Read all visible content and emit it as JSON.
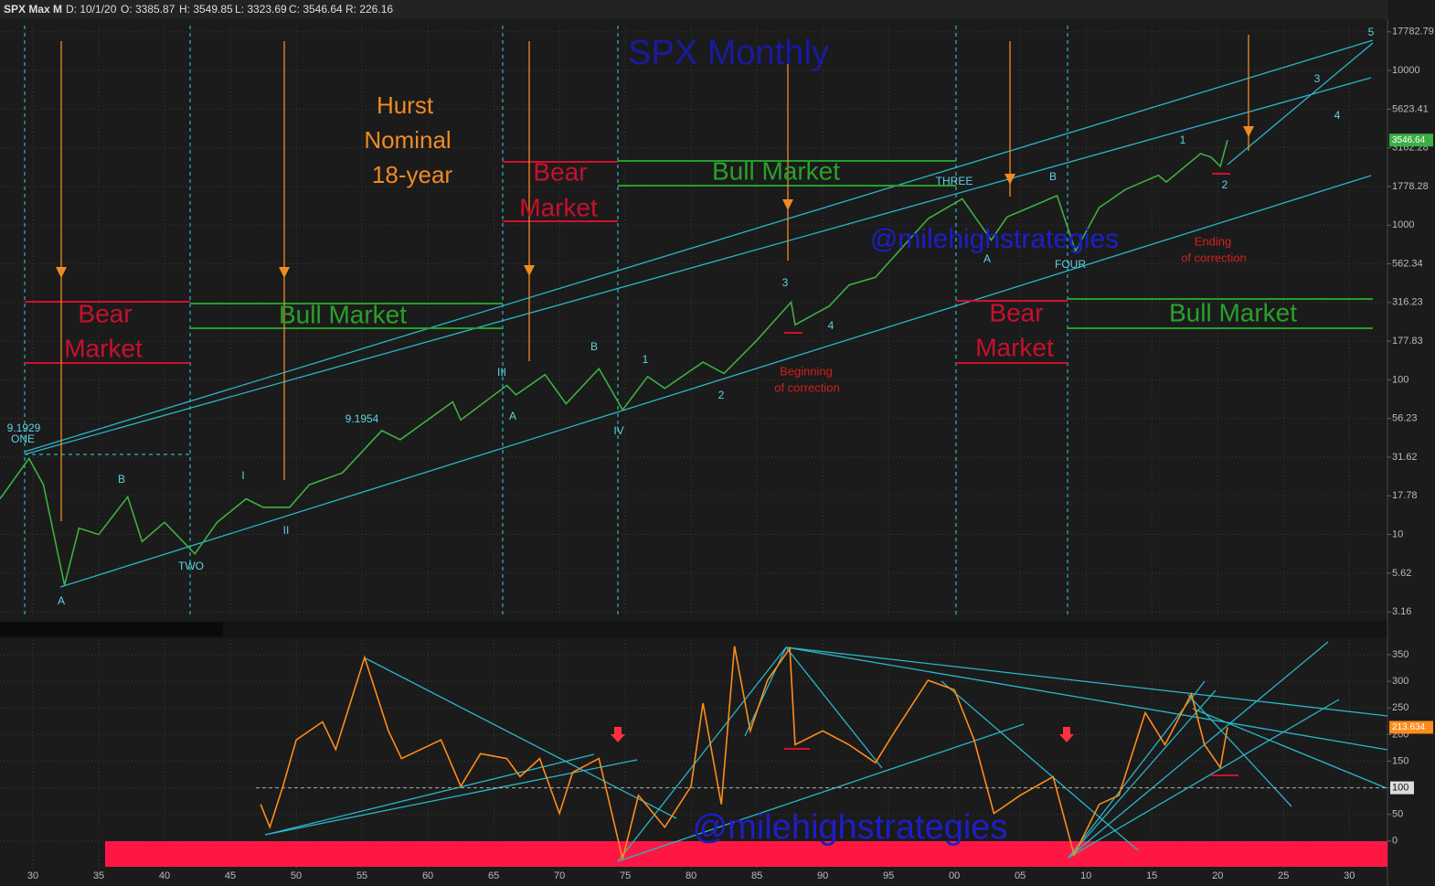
{
  "header": {
    "symbol": "SPX Max M",
    "date": "D: 10/1/20",
    "open": "O: 3385.87",
    "high": "H: 3549.85",
    "low": "L: 3323.69",
    "close": "C: 3546.64",
    "range": "R: 226.16"
  },
  "chart_data": [
    {
      "type": "line",
      "title": "SPX Monthly",
      "log_scale": true,
      "grid": true,
      "xlim": [
        1927.5,
        2032.9
      ],
      "ylim": [
        2.92,
        19500
      ],
      "yticks": [
        3.16,
        5.62,
        10,
        17.78,
        31.62,
        56.23,
        100,
        177.83,
        316.23,
        562.34,
        1000,
        1778.28,
        3162.28,
        5623.41,
        10000,
        17782.79
      ],
      "series": [
        {
          "color": "#3cb043",
          "x": [
            1927.5,
            1929.7,
            1930.8,
            1932.4,
            1933.5,
            1935,
            1937.2,
            1938.3,
            1940,
            1942.3,
            1944,
            1946.2,
            1947.5,
            1949.5,
            1951,
            1953.5,
            1956.5,
            1957.9,
            1961.9,
            1962.5,
            1966,
            1966.7,
            1968.9,
            1970.5,
            1973,
            1974.8,
            1976.7,
            1978,
            1980.9,
            1982.5,
            1985,
            1987.6,
            1987.9,
            1990.5,
            1992,
            1994,
            1998,
            2000.6,
            2002.8,
            2004,
            2007.8,
            2009.2,
            2011,
            2013,
            2015.5,
            2016.1,
            2018.7,
            2019.5,
            2020.2,
            2020.75
          ],
          "values": [
            17,
            31,
            21,
            4.7,
            11,
            10,
            17.5,
            9,
            12,
            7.5,
            12,
            17,
            15,
            15,
            21,
            25,
            47,
            41,
            72,
            55,
            92,
            80,
            108,
            70,
            118,
            64,
            105,
            88,
            130,
            110,
            180,
            318,
            227,
            300,
            410,
            460,
            1100,
            1480,
            800,
            1130,
            1550,
            680,
            1300,
            1700,
            2100,
            1900,
            2900,
            2750,
            2400,
            3546.64
          ]
        }
      ],
      "annotations": [
        "Hurst",
        "Nominal",
        "18-year",
        "Bear",
        "Market",
        "Bull Market",
        "Bear",
        "Market",
        "Bull Market",
        "Bear",
        "Market",
        "Bull Market",
        "@milehighstrategies",
        "9.1929",
        "ONE",
        "A",
        "B",
        "TWO",
        "I",
        "II",
        "9.1954",
        "III",
        "A",
        "B",
        "IV",
        "1",
        "2",
        "3",
        "4",
        "THREE",
        "A",
        "B",
        "FOUR",
        "1",
        "2",
        "3",
        "4",
        "5",
        "Beginning",
        "of correction",
        "Ending",
        "of correction"
      ]
    },
    {
      "type": "line",
      "grid": true,
      "xlim": [
        1927.5,
        2032.9
      ],
      "ylim": [
        -77.6,
        377.6
      ],
      "xticks": [
        {
          "value": 1930,
          "label": "30"
        },
        {
          "value": 1935,
          "label": "35"
        },
        {
          "value": 1940,
          "label": "40"
        },
        {
          "value": 1945,
          "label": "45"
        },
        {
          "value": 1950,
          "label": "50"
        },
        {
          "value": 1955,
          "label": "55"
        },
        {
          "value": 1960,
          "label": "60"
        },
        {
          "value": 1965,
          "label": "65"
        },
        {
          "value": 1970,
          "label": "70"
        },
        {
          "value": 1975,
          "label": "75"
        },
        {
          "value": 1980,
          "label": "80"
        },
        {
          "value": 1985,
          "label": "85"
        },
        {
          "value": 1990,
          "label": "90"
        },
        {
          "value": 1995,
          "label": "95"
        },
        {
          "value": 2000,
          "label": "00"
        },
        {
          "value": 2005,
          "label": "05"
        },
        {
          "value": 2010,
          "label": "10"
        },
        {
          "value": 2015,
          "label": "15"
        },
        {
          "value": 2020,
          "label": "20"
        },
        {
          "value": 2025,
          "label": "25"
        },
        {
          "value": 2030,
          "label": "30"
        }
      ],
      "yticks": [
        0,
        50,
        100,
        150,
        200,
        250,
        300,
        350
      ],
      "hline": 100,
      "series": [
        {
          "color": "#ff8c1a",
          "x": [
            1947.3,
            1948,
            1949,
            1950,
            1952,
            1953,
            1955.2,
            1957,
            1958,
            1961,
            1962.5,
            1964,
            1966,
            1967,
            1968.5,
            1970,
            1971,
            1973,
            1974.8,
            1976,
            1978,
            1980,
            1980.9,
            1982.3,
            1983.3,
            1984.5,
            1985.8,
            1987.5,
            1987.9,
            1990,
            1992,
            1994,
            1995.5,
            1998,
            2000,
            2001.5,
            2003,
            2005,
            2007.5,
            2009.1,
            2011,
            2012.5,
            2014.5,
            2016,
            2018,
            2019,
            2020.2,
            2020.75
          ],
          "values": [
            69,
            26,
            103,
            190,
            224,
            172,
            345,
            207,
            155,
            190,
            103,
            164,
            155,
            121,
            155,
            52,
            129,
            155,
            -34,
            86,
            26,
            103,
            259,
            69,
            366,
            207,
            302,
            362,
            181,
            207,
            181,
            147,
            207,
            302,
            284,
            190,
            52,
            86,
            121,
            -26,
            69,
            86,
            241,
            181,
            276,
            181,
            138,
            213.634
          ]
        }
      ],
      "annotations": [
        "@milehighstrategies"
      ]
    }
  ]
}
